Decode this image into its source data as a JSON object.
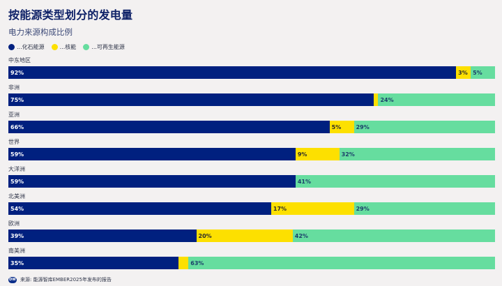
{
  "header": {
    "title": "按能源类型划分的发电量",
    "subtitle": "电力来源构成比例"
  },
  "legend": [
    {
      "label": "...化石能源",
      "color": "#00207f",
      "key": "fossil"
    },
    {
      "label": "...核能",
      "color": "#fde000",
      "key": "nuclear"
    },
    {
      "label": "...可再生能源",
      "color": "#66dd9f",
      "key": "renewable"
    }
  ],
  "footer": {
    "logo": "DW",
    "source": "来源: 能源智库EMBER2025年发布的报告"
  },
  "chart_data": {
    "type": "bar",
    "orientation": "horizontal",
    "stacked": true,
    "title": "按能源类型划分的发电量",
    "subtitle": "电力来源构成比例",
    "xlabel": "",
    "ylabel": "",
    "xlim": [
      0,
      100
    ],
    "grid": false,
    "legend_position": "top-left",
    "categories": [
      "中东地区",
      "非洲",
      "亚洲",
      "世界",
      "大洋洲",
      "北美洲",
      "欧洲",
      "南美洲"
    ],
    "series": [
      {
        "name": "...化石能源",
        "key": "fossil",
        "color": "#00207f",
        "values": [
          92,
          75,
          66,
          59,
          59,
          54,
          39,
          35
        ],
        "labels": [
          "92%",
          "75%",
          "66%",
          "59%",
          "59%",
          "54%",
          "39%",
          "35%"
        ]
      },
      {
        "name": "...核能",
        "key": "nuclear",
        "color": "#fde000",
        "values": [
          3,
          1,
          5,
          9,
          0,
          17,
          20,
          2
        ],
        "labels": [
          "3%",
          "",
          "5%",
          "9%",
          "",
          "17%",
          "20%",
          ""
        ]
      },
      {
        "name": "...可再生能源",
        "key": "renewable",
        "color": "#66dd9f",
        "values": [
          5,
          24,
          29,
          32,
          41,
          29,
          42,
          63
        ],
        "labels": [
          "5%",
          "24%",
          "29%",
          "32%",
          "41%",
          "29%",
          "42%",
          "63%"
        ]
      }
    ],
    "source": "来源: 能源智库EMBER2025年发布的报告"
  }
}
